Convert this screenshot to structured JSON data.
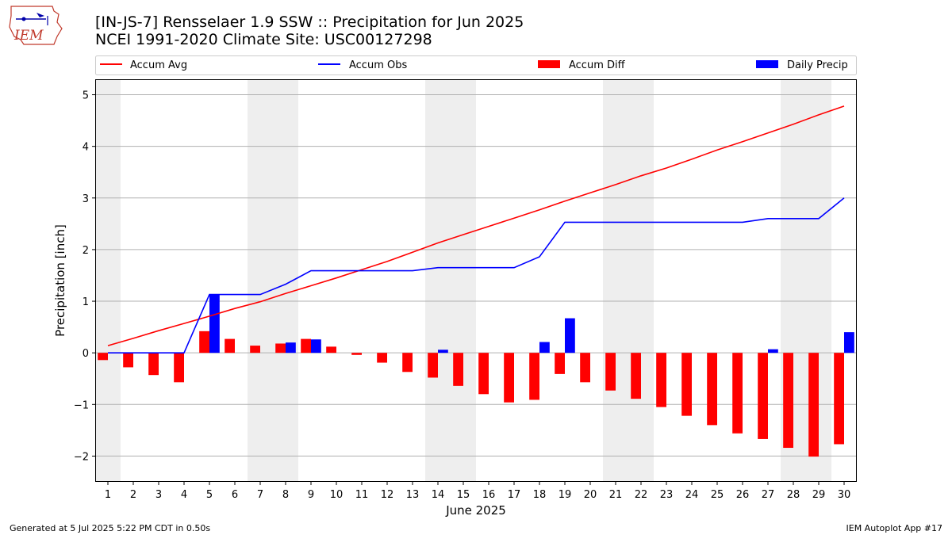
{
  "header": {
    "logo_text": "IEM",
    "title_line1": "[IN-JS-7] Rensselaer 1.9 SSW :: Precipitation for Jun 2025",
    "title_line2": "NCEI 1991-2020 Climate Site: USC00127298"
  },
  "footer": {
    "left": "Generated at 5 Jul 2025 5:22 PM CDT in 0.50s",
    "right": "IEM Autoplot App #17"
  },
  "colors": {
    "avg": "#ff0000",
    "obs": "#0000ff",
    "diff": "#ff0000",
    "daily": "#0000ff",
    "weekend_band": "#eeeeee",
    "grid": "#b0b0b0"
  },
  "chart_data": {
    "type": "bar",
    "xlabel": "June 2025",
    "ylabel": "Precipitation [inch]",
    "ylim": [
      -2.5,
      5.3
    ],
    "xlim": [
      0.5,
      30.5
    ],
    "yticks": [
      -2,
      -1,
      0,
      1,
      2,
      3,
      4,
      5
    ],
    "grid": true,
    "legend_placement": "top",
    "weekend_days": [
      1,
      7,
      8,
      14,
      15,
      21,
      22,
      28,
      29
    ],
    "legend": [
      {
        "label": "Accum Avg",
        "kind": "line",
        "series": "avg"
      },
      {
        "label": "Accum Obs",
        "kind": "line",
        "series": "obs"
      },
      {
        "label": "Accum Diff",
        "kind": "bar",
        "series": "diff"
      },
      {
        "label": "Daily Precip",
        "kind": "bar",
        "series": "daily"
      }
    ],
    "days": [
      1,
      2,
      3,
      4,
      5,
      6,
      7,
      8,
      9,
      10,
      11,
      12,
      13,
      14,
      15,
      16,
      17,
      18,
      19,
      20,
      21,
      22,
      23,
      24,
      25,
      26,
      27,
      28,
      29,
      30
    ],
    "series": [
      {
        "name": "Accum Avg",
        "key": "avg",
        "type": "line",
        "values": [
          0.14,
          0.28,
          0.43,
          0.57,
          0.71,
          0.86,
          0.99,
          1.15,
          1.3,
          1.45,
          1.61,
          1.77,
          1.95,
          2.13,
          2.29,
          2.45,
          2.61,
          2.77,
          2.94,
          3.1,
          3.26,
          3.43,
          3.58,
          3.75,
          3.93,
          4.09,
          4.26,
          4.43,
          4.61,
          4.78
        ]
      },
      {
        "name": "Accum Obs",
        "key": "obs",
        "type": "line",
        "values": [
          0.0,
          0.0,
          0.0,
          0.0,
          1.13,
          1.13,
          1.13,
          1.33,
          1.59,
          1.59,
          1.59,
          1.59,
          1.59,
          1.65,
          1.65,
          1.65,
          1.65,
          1.86,
          2.53,
          2.53,
          2.53,
          2.53,
          2.53,
          2.53,
          2.53,
          2.53,
          2.6,
          2.6,
          2.6,
          3.0
        ]
      },
      {
        "name": "Accum Diff",
        "key": "diff",
        "type": "bar",
        "values": [
          -0.14,
          -0.28,
          -0.43,
          -0.57,
          0.42,
          0.27,
          0.14,
          0.18,
          0.27,
          0.12,
          -0.04,
          -0.19,
          -0.37,
          -0.48,
          -0.64,
          -0.8,
          -0.96,
          -0.91,
          -0.41,
          -0.57,
          -0.73,
          -0.89,
          -1.05,
          -1.22,
          -1.4,
          -1.56,
          -1.67,
          -1.84,
          -2.01,
          -1.77
        ]
      },
      {
        "name": "Daily Precip",
        "key": "daily",
        "type": "bar",
        "values": [
          0,
          0,
          0,
          0,
          1.13,
          0,
          0,
          0.2,
          0.26,
          0,
          0,
          0,
          0,
          0.06,
          0,
          0,
          0,
          0.21,
          0.67,
          0,
          0,
          0,
          0,
          0,
          0,
          0,
          0.07,
          0,
          0,
          0.4
        ]
      }
    ]
  }
}
